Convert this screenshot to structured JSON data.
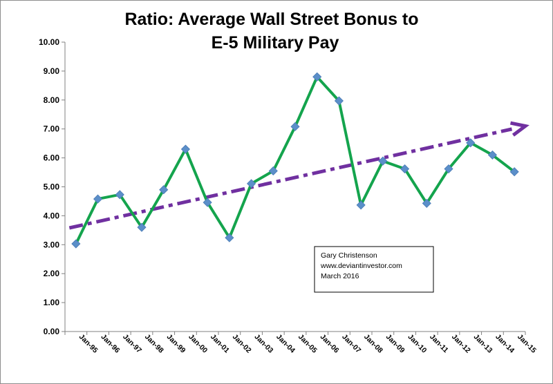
{
  "chart_data": {
    "type": "line",
    "title": [
      "Ratio:  Average Wall Street Bonus to",
      "E-5 Military Pay"
    ],
    "xlabel": "",
    "ylabel": "",
    "ylim": [
      0,
      10
    ],
    "ytick_labels": [
      "0.00",
      "1.00",
      "2.00",
      "3.00",
      "4.00",
      "5.00",
      "6.00",
      "7.00",
      "8.00",
      "9.00",
      "10.00"
    ],
    "categories": [
      "Jan-95",
      "Jan-96",
      "Jan-97",
      "Jan-98",
      "Jan-99",
      "Jan-00",
      "Jan-01",
      "Jan-02",
      "Jan-03",
      "Jan-04",
      "Jan-05",
      "Jan-06",
      "Jan-07",
      "Jan-08",
      "Jan-09",
      "Jan-10",
      "Jan-11",
      "Jan-12",
      "Jan-13",
      "Jan-14",
      "Jan-15"
    ],
    "series": [
      {
        "name": "Ratio",
        "values": [
          3.03,
          4.58,
          4.73,
          3.6,
          4.9,
          6.3,
          4.46,
          3.24,
          5.11,
          5.55,
          7.08,
          8.8,
          7.97,
          4.37,
          5.89,
          5.62,
          4.43,
          5.62,
          6.52,
          6.1,
          5.52
        ],
        "color": "#14a44d",
        "marker_color": "#5b8fc9"
      }
    ],
    "trendline": {
      "name": "Trend",
      "from": [
        0,
        3.58
      ],
      "to": [
        21,
        7.1
      ],
      "color": "#7030a0",
      "style": "dash-dot",
      "arrow": true
    },
    "grid": false,
    "annotation": {
      "lines": [
        "Gary Christenson",
        "www.deviantinvestor.com",
        "March 2016"
      ]
    }
  }
}
